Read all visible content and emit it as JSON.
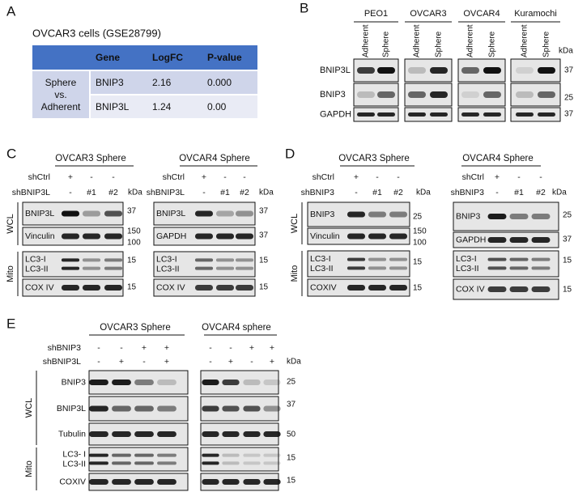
{
  "panel_a": {
    "label": "A",
    "title": "OVCAR3 cells (GSE28799)",
    "table": {
      "header": [
        "Gene",
        "LogFC",
        "P-value"
      ],
      "row_group": [
        "Sphere",
        "vs.",
        "Adherent"
      ],
      "rows": [
        [
          "BNIP3",
          "2.16",
          "0.000"
        ],
        [
          "BNIP3L",
          "1.24",
          "0.00"
        ]
      ]
    }
  },
  "panel_b": {
    "label": "B",
    "kda": "kDa",
    "cell_lines": [
      {
        "name": "PEO1",
        "lanes": [
          "Adherent",
          "Sphere"
        ]
      },
      {
        "name": "OVCAR3",
        "lanes": [
          "Adherent",
          "Sphere"
        ]
      },
      {
        "name": "OVCAR4",
        "lanes": [
          "Adherent",
          "Sphere"
        ]
      },
      {
        "name": "Kuramochi",
        "lanes": [
          "Adherent",
          "Sphere"
        ]
      }
    ],
    "rows": [
      {
        "labels": [
          "BNIP3L"
        ],
        "markers": [
          "37"
        ]
      },
      {
        "labels": [
          "BNIP3"
        ],
        "markers": [
          "25"
        ]
      },
      {
        "labels": [
          "GAPDH"
        ],
        "markers": [
          "37"
        ]
      }
    ]
  },
  "panel_c": {
    "label": "C",
    "blots": [
      {
        "title": "OVCAR3 Sphere",
        "conditions": [
          {
            "name": "shCtrl",
            "lanes": [
              "+",
              "-",
              "-"
            ]
          },
          {
            "name": "shBNIP3L",
            "lanes": [
              "-",
              "#1",
              "#2"
            ]
          }
        ],
        "kda": "kDa",
        "groups": [
          {
            "name": "WCL",
            "rows": [
              {
                "labels": [
                  "BNIP3L"
                ],
                "markers": [
                  "37"
                ]
              },
              {
                "labels": [
                  "Vinculin"
                ],
                "markers": [
                  "150",
                  "100"
                ]
              }
            ]
          },
          {
            "name": "Mito",
            "rows": [
              {
                "labels": [
                  "LC3-I",
                  "LC3-II"
                ],
                "markers": [
                  "15"
                ]
              },
              {
                "labels": [
                  "COX IV"
                ],
                "markers": [
                  "15"
                ]
              }
            ]
          }
        ]
      },
      {
        "title": "OVCAR4 Sphere",
        "conditions": [
          {
            "name": "shCtrl",
            "lanes": [
              "+",
              "-",
              "-"
            ]
          },
          {
            "name": "shBNIP3L",
            "lanes": [
              "-",
              "#1",
              "#2"
            ]
          }
        ],
        "kda": "kDa",
        "rows": [
          {
            "labels": [
              "BNIP3L"
            ],
            "markers": [
              "37"
            ]
          },
          {
            "labels": [
              "GAPDH"
            ],
            "markers": [
              "37"
            ]
          },
          {
            "labels": [
              "LC3-I",
              "LC3-II"
            ],
            "markers": [
              "15"
            ]
          },
          {
            "labels": [
              "COX IV"
            ],
            "markers": [
              "15"
            ]
          }
        ]
      }
    ]
  },
  "panel_d": {
    "label": "D",
    "blots": [
      {
        "title": "OVCAR3 Sphere",
        "conditions": [
          {
            "name": "shCtrl",
            "lanes": [
              "+",
              "-",
              "-"
            ]
          },
          {
            "name": "shBNIP3",
            "lanes": [
              "-",
              "#1",
              "#2"
            ]
          }
        ],
        "kda": "kDa",
        "groups": [
          {
            "name": "WCL",
            "rows": [
              {
                "labels": [
                  "BNIP3"
                ],
                "markers": [
                  "25"
                ]
              },
              {
                "labels": [
                  "Vinculin"
                ],
                "markers": [
                  "150",
                  "100"
                ]
              }
            ]
          },
          {
            "name": "Mito",
            "rows": [
              {
                "labels": [
                  "LC3-I",
                  "LC3-II"
                ],
                "markers": [
                  "15"
                ]
              },
              {
                "labels": [
                  "COXIV"
                ],
                "markers": [
                  "15"
                ]
              }
            ]
          }
        ]
      },
      {
        "title": "OVCAR4 Sphere",
        "conditions": [
          {
            "name": "shCtrl",
            "lanes": [
              "+",
              "-",
              "-"
            ]
          },
          {
            "name": "shBNIP3",
            "lanes": [
              "-",
              "#1",
              "#2"
            ]
          }
        ],
        "kda": "kDa",
        "rows": [
          {
            "labels": [
              "BNIP3"
            ],
            "markers": [
              "25"
            ]
          },
          {
            "labels": [
              "GAPDH"
            ],
            "markers": [
              "37"
            ]
          },
          {
            "labels": [
              "LC3-I",
              "LC3-II"
            ],
            "markers": [
              "15"
            ]
          },
          {
            "labels": [
              "COX IV"
            ],
            "markers": [
              "15"
            ]
          }
        ]
      }
    ]
  },
  "panel_e": {
    "label": "E",
    "blots": [
      {
        "title": "OVCAR3 Sphere",
        "conditions": [
          {
            "name": "shBNIP3",
            "lanes": [
              "-",
              "-",
              "+",
              "+"
            ]
          },
          {
            "name": "shBNIP3L",
            "lanes": [
              "-",
              "+",
              "-",
              "+"
            ]
          }
        ],
        "groups": [
          {
            "name": "WCL",
            "rows": [
              {
                "labels": [
                  "BNIP3"
                ]
              },
              {
                "labels": [
                  "BNIP3L"
                ]
              },
              {
                "labels": [
                  "Tubulin"
                ]
              }
            ]
          },
          {
            "name": "Mito",
            "rows": [
              {
                "labels": [
                  "LC3- I",
                  "LC3-II"
                ]
              },
              {
                "labels": [
                  "COXIV"
                ]
              }
            ]
          }
        ]
      },
      {
        "title": "OVCAR4 sphere",
        "conditions": [
          {
            "lanes": [
              "-",
              "-",
              "+",
              "+"
            ]
          },
          {
            "lanes": [
              "-",
              "+",
              "-",
              "+"
            ]
          }
        ],
        "kda": "kDa",
        "rows": [
          {
            "markers": [
              "25"
            ]
          },
          {
            "markers": [
              "37"
            ]
          },
          {
            "markers": [
              "50"
            ]
          },
          {
            "markers": [
              "15"
            ]
          },
          {
            "markers": [
              "15"
            ]
          }
        ]
      }
    ]
  }
}
